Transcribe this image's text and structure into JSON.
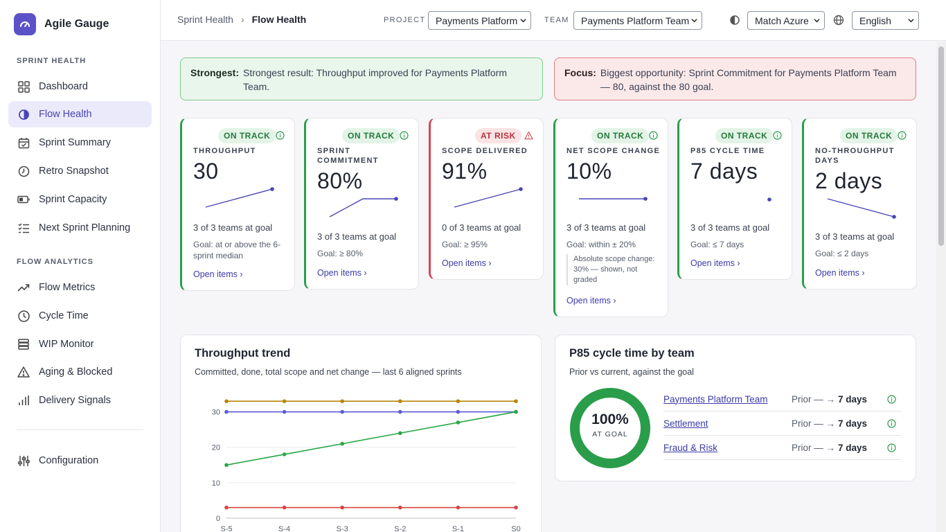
{
  "app": {
    "name": "Agile Gauge"
  },
  "sidebar": {
    "sections": [
      {
        "label": "SPRINT HEALTH"
      },
      {
        "label": "FLOW ANALYTICS"
      }
    ],
    "items": [
      {
        "label": "Dashboard",
        "icon": "dashboard-grid-icon"
      },
      {
        "label": "Flow Health",
        "icon": "flow-health-icon",
        "active": true
      },
      {
        "label": "Sprint Summary",
        "icon": "calendar-check-icon"
      },
      {
        "label": "Retro Snapshot",
        "icon": "clock-history-icon"
      },
      {
        "label": "Sprint Capacity",
        "icon": "battery-icon"
      },
      {
        "label": "Next Sprint Planning",
        "icon": "checklist-icon"
      },
      {
        "label": "Flow Metrics",
        "icon": "trending-up-icon"
      },
      {
        "label": "Cycle Time",
        "icon": "clock-icon"
      },
      {
        "label": "WIP Monitor",
        "icon": "stack-icon"
      },
      {
        "label": "Aging & Blocked",
        "icon": "warning-icon"
      },
      {
        "label": "Delivery Signals",
        "icon": "signal-bars-icon"
      },
      {
        "label": "Configuration",
        "icon": "sliders-icon"
      }
    ]
  },
  "header": {
    "breadcrumb": {
      "parent": "Sprint Health",
      "current": "Flow Health"
    },
    "project": {
      "label": "PROJECT",
      "value": "Payments Platform"
    },
    "team": {
      "label": "TEAM",
      "value": "Payments Platform Team"
    },
    "theme": {
      "value": "Match Azure"
    },
    "language": {
      "value": "English"
    }
  },
  "banners": {
    "strongest": {
      "label": "Strongest:",
      "text": "Strongest result: Throughput improved for Payments Platform Team."
    },
    "focus": {
      "label": "Focus:",
      "text": "Biggest opportunity: Sprint Commitment for Payments Platform Team — 80, against the 80 goal."
    }
  },
  "kpis": [
    {
      "status": "ON TRACK",
      "name": "THROUGHPUT",
      "value": "30",
      "teams": "3 of 3 teams at goal",
      "goal": "Goal: at or above the 6-sprint median",
      "link": "Open items ›",
      "spark": [
        0,
        1
      ]
    },
    {
      "status": "ON TRACK",
      "name": "SPRINT COMMITMENT",
      "value": "80%",
      "teams": "3 of 3 teams at goal",
      "goal": "Goal: ≥ 80%",
      "link": "Open items ›",
      "spark": [
        0,
        1,
        1
      ]
    },
    {
      "status": "AT RISK",
      "name": "SCOPE DELIVERED",
      "value": "91%",
      "teams": "0 of 3 teams at goal",
      "goal": "Goal: ≥ 95%",
      "link": "Open items ›",
      "spark": [
        0,
        1
      ]
    },
    {
      "status": "ON TRACK",
      "name": "NET SCOPE CHANGE",
      "value": "10%",
      "teams": "3 of 3 teams at goal",
      "goal": "Goal: within ± 20%",
      "note": "Absolute scope change: 30% — shown, not graded",
      "link": "Open items ›",
      "spark": [
        0,
        0
      ]
    },
    {
      "status": "ON TRACK",
      "name": "P85 CYCLE TIME",
      "value": "7 days",
      "teams": "3 of 3 teams at goal",
      "goal": "Goal: ≤ 7 days",
      "link": "Open items ›",
      "spark": [
        0
      ]
    },
    {
      "status": "ON TRACK",
      "name": "NO-THROUGHPUT DAYS",
      "value": "2 days",
      "teams": "3 of 3 teams at goal",
      "goal": "Goal: ≤ 2 days",
      "link": "Open items ›",
      "spark": [
        1,
        0
      ]
    }
  ],
  "trend": {
    "title": "Throughput trend",
    "subtitle": "Committed, done, total scope and net change — last 6 aligned sprints"
  },
  "chart_data": {
    "type": "line",
    "categories": [
      "S-5",
      "S-4",
      "S-3",
      "S-2",
      "S-1",
      "S0"
    ],
    "yticks": [
      0,
      10,
      20,
      30
    ],
    "ylim": [
      0,
      35
    ],
    "grid": true,
    "series": [
      {
        "color": "#b8860b",
        "values": [
          33,
          33,
          33,
          33,
          33,
          33
        ]
      },
      {
        "color": "#5b5bd6",
        "values": [
          30,
          30,
          30,
          30,
          30,
          30
        ]
      },
      {
        "color": "#28a745",
        "values": [
          15,
          18,
          21,
          24,
          27,
          30
        ]
      },
      {
        "color": "#d64545",
        "values": [
          3,
          3,
          3,
          3,
          3,
          3
        ]
      }
    ]
  },
  "cycle": {
    "title": "P85 cycle time by team",
    "subtitle": "Prior vs current, against the goal",
    "donut_value": "100%",
    "donut_label": "AT GOAL",
    "donut_fraction": 1.0,
    "teams": [
      {
        "name": "Payments Platform Team",
        "prior": "Prior — →",
        "current": "7 days"
      },
      {
        "name": "Settlement",
        "prior": "Prior — →",
        "current": "7 days"
      },
      {
        "name": "Fraud & Risk",
        "prior": "Prior — →",
        "current": "7 days"
      }
    ]
  },
  "colors": {
    "accent": "#5a52c6",
    "ok": "#2a9d4a",
    "risk": "#d4474f"
  }
}
